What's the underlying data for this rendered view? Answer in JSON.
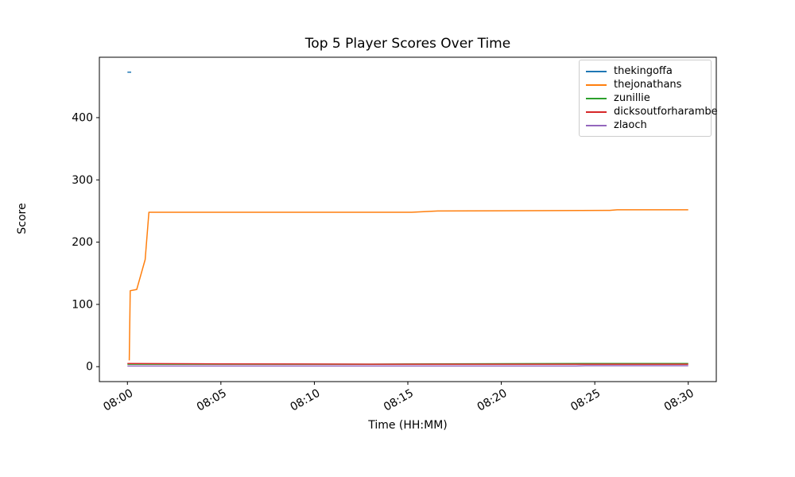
{
  "chart_data": {
    "type": "line",
    "title": "Top 5 Player Scores Over Time",
    "xlabel": "Time (HH:MM)",
    "ylabel": "Score",
    "x_unit": "minutes after 08:00",
    "xlim_minutes": [
      -1.5,
      31.5
    ],
    "ylim": [
      -24,
      497
    ],
    "grid": false,
    "legend_position": "upper right",
    "x_ticks": [
      {
        "minute": 0,
        "label": "08:00"
      },
      {
        "minute": 5,
        "label": "08:05"
      },
      {
        "minute": 10,
        "label": "08:10"
      },
      {
        "minute": 15,
        "label": "08:15"
      },
      {
        "minute": 20,
        "label": "08:20"
      },
      {
        "minute": 25,
        "label": "08:25"
      },
      {
        "minute": 30,
        "label": "08:30"
      }
    ],
    "y_ticks": [
      0,
      100,
      200,
      300,
      400
    ],
    "series": [
      {
        "name": "thekingoffa",
        "color": "#1f77b4",
        "points": [
          [
            0,
            473
          ],
          [
            0.2,
            473
          ]
        ]
      },
      {
        "name": "thejonathans",
        "color": "#ff7f0e",
        "points": [
          [
            0.1,
            10
          ],
          [
            0.15,
            122
          ],
          [
            0.5,
            124
          ],
          [
            0.95,
            172
          ],
          [
            1.15,
            248
          ],
          [
            15.2,
            248
          ],
          [
            16.6,
            250
          ],
          [
            25.8,
            251
          ],
          [
            26.2,
            252
          ],
          [
            30,
            252
          ]
        ]
      },
      {
        "name": "zunillie",
        "color": "#2ca02c",
        "points": [
          [
            0,
            4
          ],
          [
            13,
            4
          ],
          [
            16.5,
            4.5
          ],
          [
            24.5,
            5
          ],
          [
            30,
            5
          ]
        ]
      },
      {
        "name": "dicksoutforharambe",
        "color": "#d62728",
        "points": [
          [
            0,
            5
          ],
          [
            5,
            4.5
          ],
          [
            13,
            4
          ],
          [
            30,
            4
          ]
        ]
      },
      {
        "name": "zlaoch",
        "color": "#9467bd",
        "points": [
          [
            0,
            1
          ],
          [
            24,
            1
          ],
          [
            24.5,
            1.5
          ],
          [
            30,
            1.5
          ]
        ]
      }
    ]
  }
}
